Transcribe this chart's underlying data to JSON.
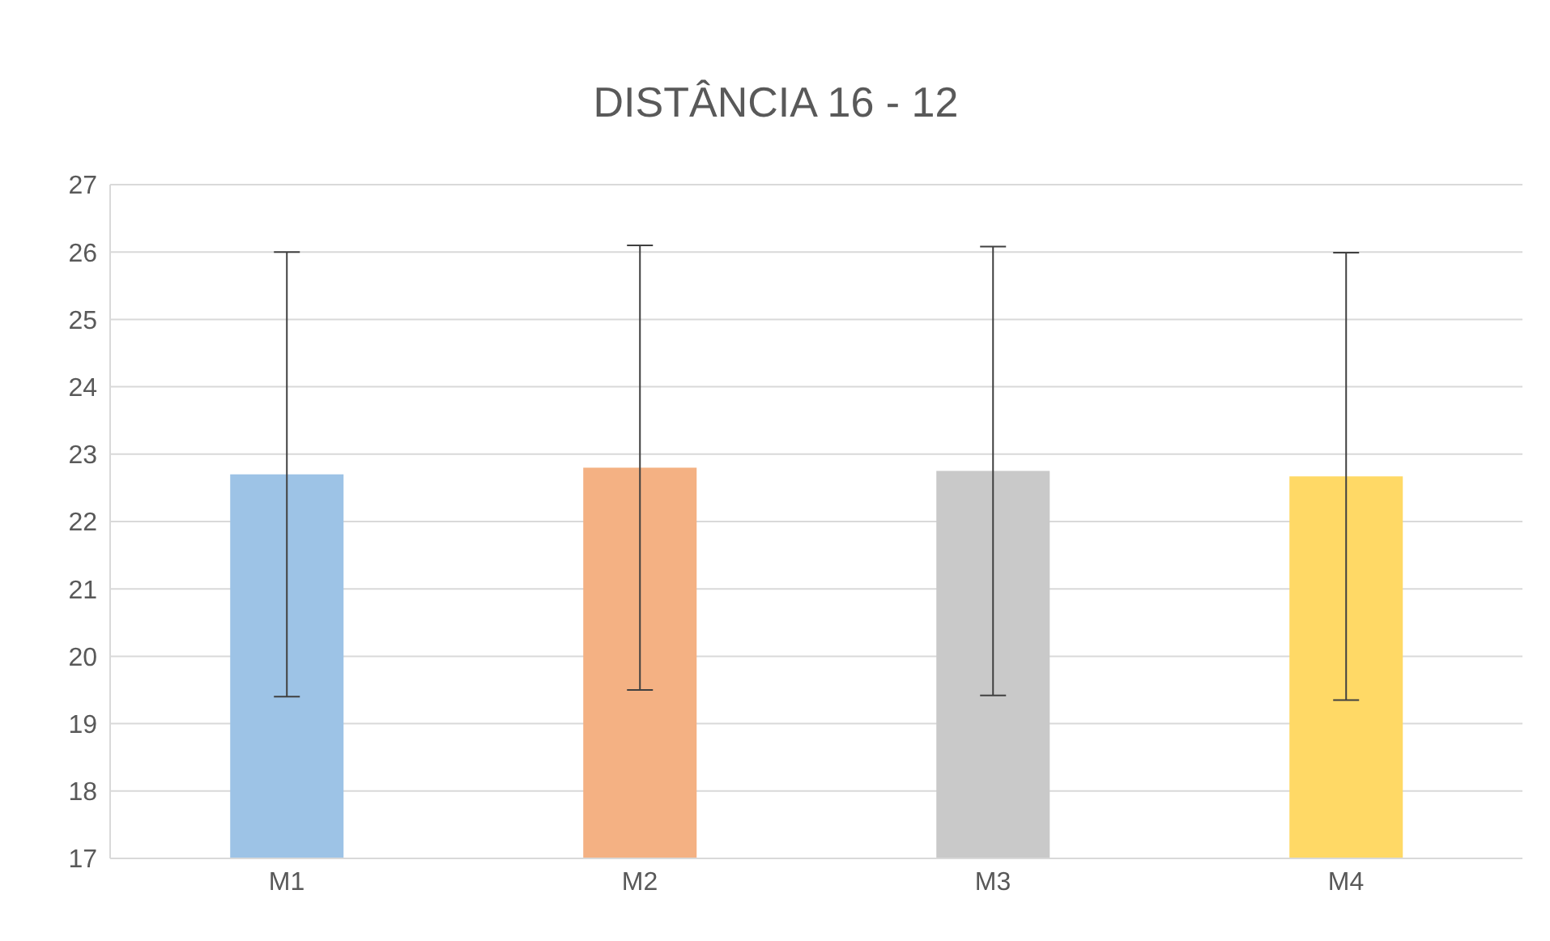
{
  "chart_data": {
    "type": "bar",
    "title": "DISTÂNCIA 16 - 12",
    "categories": [
      "M1",
      "M2",
      "M3",
      "M4"
    ],
    "values": [
      22.7,
      22.8,
      22.75,
      22.67
    ],
    "errors": [
      3.3,
      3.3,
      3.33,
      3.32
    ],
    "colors": [
      "#9dc3e6",
      "#f4b183",
      "#c9c9c9",
      "#ffd966"
    ],
    "ylim": [
      17,
      27
    ],
    "yticks": [
      17,
      18,
      19,
      20,
      21,
      22,
      23,
      24,
      25,
      26,
      27
    ],
    "grid": "y",
    "legend": false
  }
}
